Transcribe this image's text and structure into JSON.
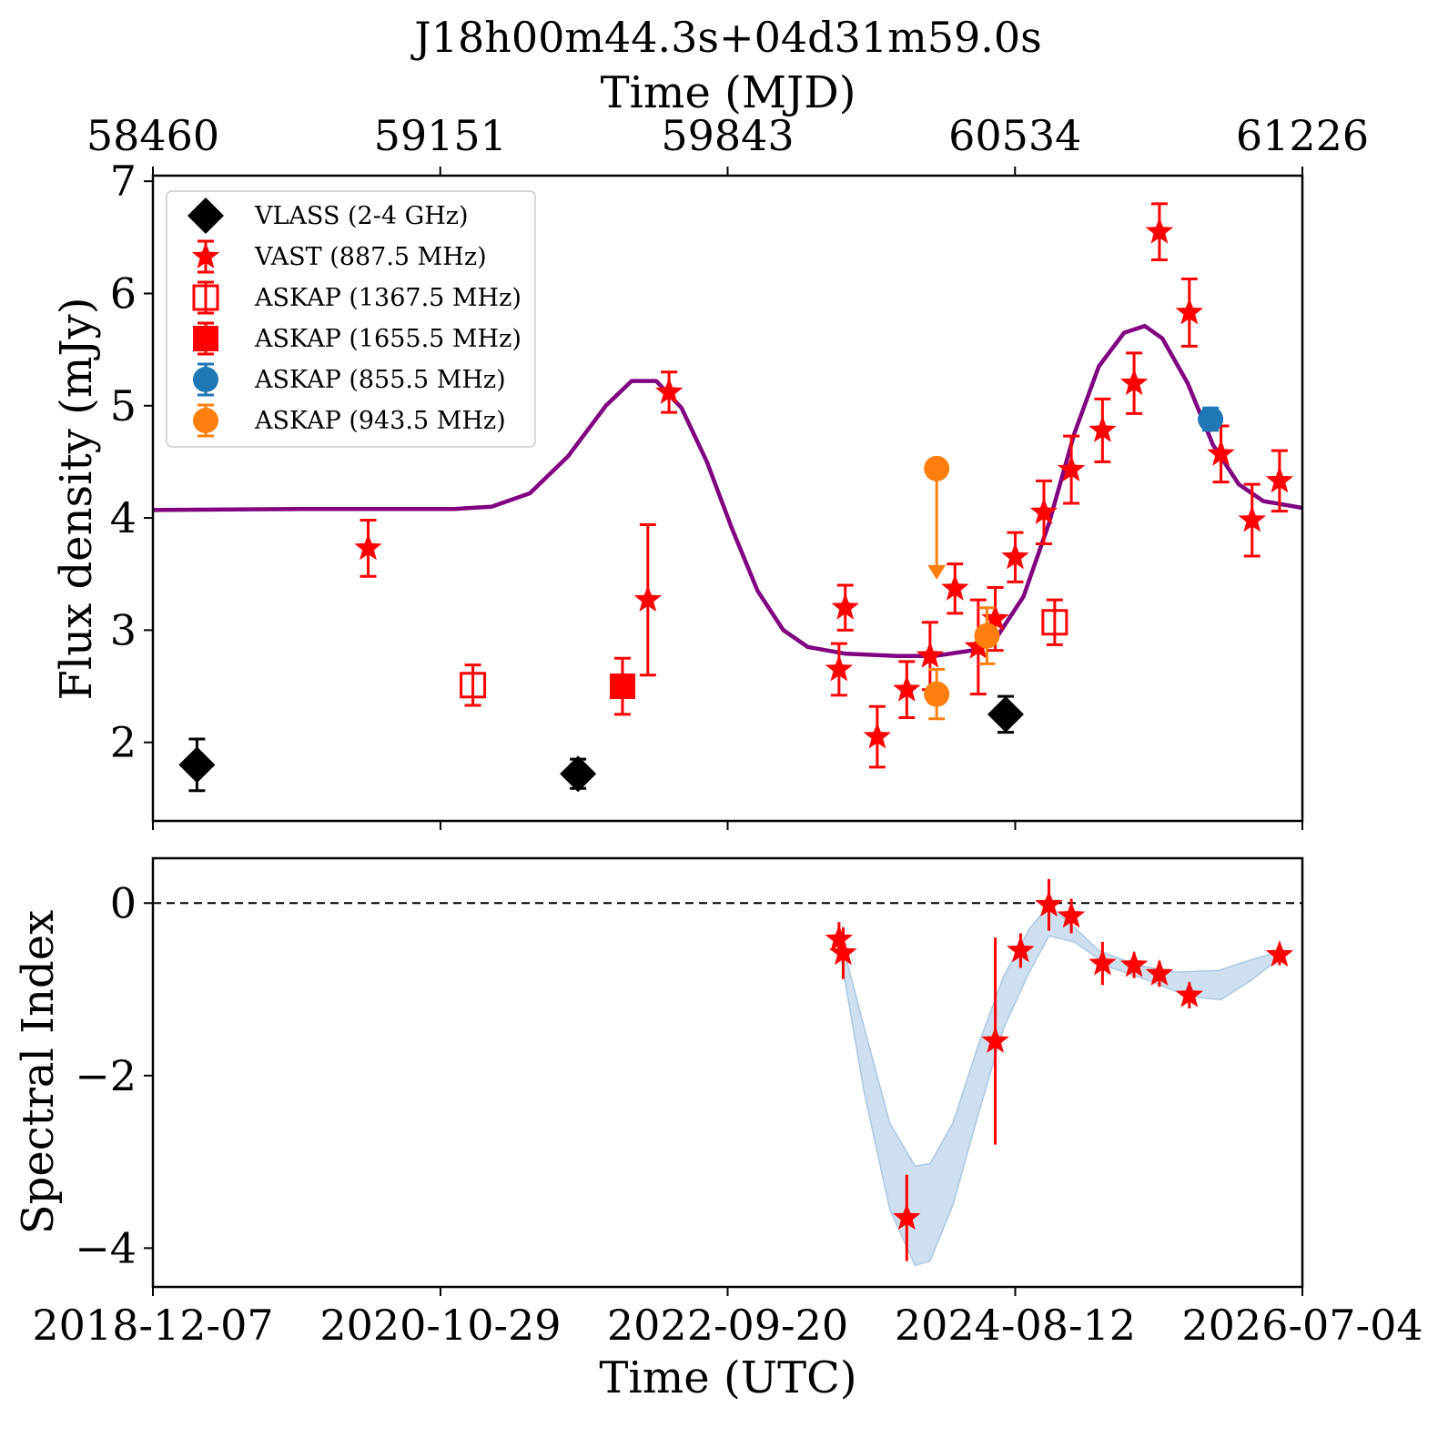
{
  "chart_data": [
    {
      "type": "scatter",
      "title": "J18h00m44.3s+04d31m59.0s",
      "top_xlabel": "Time (MJD)",
      "top_ticks": [
        "58460",
        "59151",
        "59843",
        "60534",
        "61226"
      ],
      "xlabel": "",
      "ylabel": "Flux density (mJy)",
      "xlim": [
        "2018-12-07",
        "2026-07-04"
      ],
      "ylim": [
        1.3,
        7.05
      ],
      "yticks": [
        2,
        3,
        4,
        5,
        6,
        7
      ],
      "grid": false,
      "legend_position": "upper-left",
      "series": [
        {
          "name": "VLASS (2-4 GHz)",
          "marker": "diamond",
          "color": "#000000",
          "filled": true,
          "points": [
            {
              "x": "2019-03-23",
              "y": 1.8,
              "err": 0.23
            },
            {
              "x": "2021-09-25",
              "y": 1.72,
              "err": 0.13
            },
            {
              "x": "2024-07-20",
              "y": 2.25,
              "err": 0.16
            }
          ]
        },
        {
          "name": "VAST (887.5 MHz)",
          "marker": "star",
          "color": "#ff0000",
          "filled": true,
          "points": [
            {
              "x": "2020-05-08",
              "y": 3.73,
              "err": 0.25
            },
            {
              "x": "2022-03-12",
              "y": 3.27,
              "err": 0.67
            },
            {
              "x": "2022-05-02",
              "y": 5.12,
              "err": 0.18
            },
            {
              "x": "2023-06-15",
              "y": 2.65,
              "err": 0.23
            },
            {
              "x": "2023-06-30",
              "y": 3.2,
              "err": 0.2
            },
            {
              "x": "2023-09-15",
              "y": 2.05,
              "err": 0.27
            },
            {
              "x": "2023-11-25",
              "y": 2.47,
              "err": 0.25
            },
            {
              "x": "2024-01-20",
              "y": 2.77,
              "err": 0.3
            },
            {
              "x": "2024-03-20",
              "y": 3.37,
              "err": 0.22
            },
            {
              "x": "2024-05-15",
              "y": 2.85,
              "err": 0.42
            },
            {
              "x": "2024-06-25",
              "y": 3.1,
              "err": 0.28
            },
            {
              "x": "2024-08-12",
              "y": 3.65,
              "err": 0.22
            },
            {
              "x": "2024-10-20",
              "y": 4.05,
              "err": 0.28
            },
            {
              "x": "2024-12-25",
              "y": 4.43,
              "err": 0.3
            },
            {
              "x": "2025-03-10",
              "y": 4.78,
              "err": 0.28
            },
            {
              "x": "2025-05-25",
              "y": 5.2,
              "err": 0.27
            },
            {
              "x": "2025-07-25",
              "y": 6.55,
              "err": 0.25
            },
            {
              "x": "2025-10-05",
              "y": 5.83,
              "err": 0.3
            },
            {
              "x": "2025-12-20",
              "y": 4.57,
              "err": 0.25
            },
            {
              "x": "2026-03-05",
              "y": 3.98,
              "err": 0.32
            },
            {
              "x": "2026-05-10",
              "y": 4.33,
              "err": 0.27
            }
          ]
        },
        {
          "name": "ASKAP (1367.5 MHz)",
          "marker": "square",
          "color": "#ff0000",
          "filled": false,
          "points": [
            {
              "x": "2021-01-15",
              "y": 2.51,
              "err": 0.18
            },
            {
              "x": "2024-11-15",
              "y": 3.07,
              "err": 0.2
            }
          ]
        },
        {
          "name": "ASKAP (1655.5 MHz)",
          "marker": "square",
          "color": "#ff0000",
          "filled": true,
          "points": [
            {
              "x": "2022-01-10",
              "y": 2.5,
              "err": 0.25
            }
          ]
        },
        {
          "name": "ASKAP (855.5 MHz)",
          "marker": "circle",
          "color": "#1f77b4",
          "filled": true,
          "points": [
            {
              "x": "2025-11-25",
              "y": 4.88,
              "err": 0.1
            }
          ]
        },
        {
          "name": "ASKAP (943.5 MHz)",
          "marker": "circle",
          "color": "#ff7f0e",
          "filled": true,
          "points": [
            {
              "x": "2024-02-05",
              "y": 2.43,
              "err": 0.22
            },
            {
              "x": "2024-06-05",
              "y": 2.95,
              "err": 0.25
            }
          ],
          "upper_limits": [
            {
              "x": "2024-02-05",
              "y": 4.44,
              "arrow_to": 3.45
            }
          ]
        }
      ],
      "model_curve": {
        "color": "#800080",
        "points": [
          {
            "x": "2018-12-07",
            "y": 4.07
          },
          {
            "x": "2019-12-01",
            "y": 4.08
          },
          {
            "x": "2020-12-01",
            "y": 4.08
          },
          {
            "x": "2021-03-01",
            "y": 4.1
          },
          {
            "x": "2021-06-01",
            "y": 4.22
          },
          {
            "x": "2021-09-01",
            "y": 4.55
          },
          {
            "x": "2021-12-01",
            "y": 5.0
          },
          {
            "x": "2022-02-01",
            "y": 5.22
          },
          {
            "x": "2022-04-01",
            "y": 5.22
          },
          {
            "x": "2022-06-01",
            "y": 4.98
          },
          {
            "x": "2022-08-01",
            "y": 4.5
          },
          {
            "x": "2022-10-01",
            "y": 3.9
          },
          {
            "x": "2022-12-01",
            "y": 3.35
          },
          {
            "x": "2023-02-01",
            "y": 3.0
          },
          {
            "x": "2023-04-01",
            "y": 2.85
          },
          {
            "x": "2023-07-01",
            "y": 2.79
          },
          {
            "x": "2023-11-01",
            "y": 2.77
          },
          {
            "x": "2024-02-01",
            "y": 2.77
          },
          {
            "x": "2024-05-01",
            "y": 2.82
          },
          {
            "x": "2024-07-01",
            "y": 2.95
          },
          {
            "x": "2024-09-01",
            "y": 3.3
          },
          {
            "x": "2024-11-01",
            "y": 3.95
          },
          {
            "x": "2025-01-01",
            "y": 4.75
          },
          {
            "x": "2025-03-01",
            "y": 5.35
          },
          {
            "x": "2025-05-01",
            "y": 5.65
          },
          {
            "x": "2025-06-20",
            "y": 5.71
          },
          {
            "x": "2025-08-01",
            "y": 5.6
          },
          {
            "x": "2025-10-01",
            "y": 5.2
          },
          {
            "x": "2025-12-01",
            "y": 4.65
          },
          {
            "x": "2026-02-01",
            "y": 4.3
          },
          {
            "x": "2026-04-01",
            "y": 4.15
          },
          {
            "x": "2026-07-04",
            "y": 4.09
          }
        ]
      }
    },
    {
      "type": "scatter",
      "xlabel": "Time (UTC)",
      "ylabel": "Spectral Index",
      "xlim": [
        "2018-12-07",
        "2026-07-04"
      ],
      "xticks": [
        "2018-12-07",
        "2020-10-29",
        "2022-09-20",
        "2024-08-12",
        "2026-07-04"
      ],
      "ylim": [
        -4.45,
        0.52
      ],
      "yticks": [
        {
          "v": 0,
          "label": "0"
        },
        {
          "v": -2,
          "label": "−2"
        },
        {
          "v": -4,
          "label": "−4"
        }
      ],
      "reference_line": {
        "y": 0,
        "style": "dashed",
        "color": "#000000"
      },
      "series": [
        {
          "name": "",
          "marker": "star",
          "color": "#ff0000",
          "points": [
            {
              "x": "2023-06-15",
              "y": -0.42,
              "err": 0.2
            },
            {
              "x": "2023-06-25",
              "y": -0.58,
              "err": 0.3
            },
            {
              "x": "2023-11-25",
              "y": -3.65,
              "err": 0.5
            },
            {
              "x": "2024-06-25",
              "y": -1.6,
              "err": 1.2
            },
            {
              "x": "2024-08-25",
              "y": -0.55,
              "err": 0.2
            },
            {
              "x": "2024-11-01",
              "y": -0.02,
              "err": 0.3
            },
            {
              "x": "2024-12-25",
              "y": -0.15,
              "err": 0.2
            },
            {
              "x": "2025-03-10",
              "y": -0.7,
              "err": 0.25
            },
            {
              "x": "2025-05-25",
              "y": -0.72,
              "err": 0.15
            },
            {
              "x": "2025-07-25",
              "y": -0.82,
              "err": 0.15
            },
            {
              "x": "2025-10-05",
              "y": -1.07,
              "err": 0.15
            },
            {
              "x": "2026-05-10",
              "y": -0.6,
              "err": 0.12
            }
          ]
        }
      ],
      "uncertainty_band": {
        "color": "#c6dbec",
        "upper": [
          {
            "x": "2023-06-20",
            "y": -0.42
          },
          {
            "x": "2023-08-15",
            "y": -1.45
          },
          {
            "x": "2023-10-15",
            "y": -2.55
          },
          {
            "x": "2023-12-15",
            "y": -3.05
          },
          {
            "x": "2024-01-20",
            "y": -3.02
          },
          {
            "x": "2024-03-15",
            "y": -2.55
          },
          {
            "x": "2024-05-15",
            "y": -1.65
          },
          {
            "x": "2024-07-15",
            "y": -0.85
          },
          {
            "x": "2024-09-15",
            "y": -0.3
          },
          {
            "x": "2024-11-01",
            "y": -0.02
          },
          {
            "x": "2025-01-01",
            "y": -0.28
          },
          {
            "x": "2025-03-01",
            "y": -0.55
          },
          {
            "x": "2025-06-01",
            "y": -0.72
          },
          {
            "x": "2025-09-01",
            "y": -0.8
          },
          {
            "x": "2025-12-15",
            "y": -0.78
          },
          {
            "x": "2026-03-01",
            "y": -0.66
          },
          {
            "x": "2026-05-10",
            "y": -0.56
          }
        ],
        "lower": [
          {
            "x": "2026-05-10",
            "y": -0.64
          },
          {
            "x": "2026-03-01",
            "y": -0.9
          },
          {
            "x": "2025-12-20",
            "y": -1.12
          },
          {
            "x": "2025-10-01",
            "y": -1.08
          },
          {
            "x": "2025-07-01",
            "y": -0.9
          },
          {
            "x": "2025-04-01",
            "y": -0.75
          },
          {
            "x": "2025-01-01",
            "y": -0.45
          },
          {
            "x": "2024-11-01",
            "y": -0.38
          },
          {
            "x": "2024-09-15",
            "y": -0.8
          },
          {
            "x": "2024-07-15",
            "y": -1.45
          },
          {
            "x": "2024-05-15",
            "y": -2.45
          },
          {
            "x": "2024-03-15",
            "y": -3.5
          },
          {
            "x": "2024-01-20",
            "y": -4.15
          },
          {
            "x": "2023-12-15",
            "y": -4.2
          },
          {
            "x": "2023-10-15",
            "y": -3.55
          },
          {
            "x": "2023-08-15",
            "y": -2.2
          },
          {
            "x": "2023-06-20",
            "y": -0.65
          }
        ]
      }
    }
  ]
}
